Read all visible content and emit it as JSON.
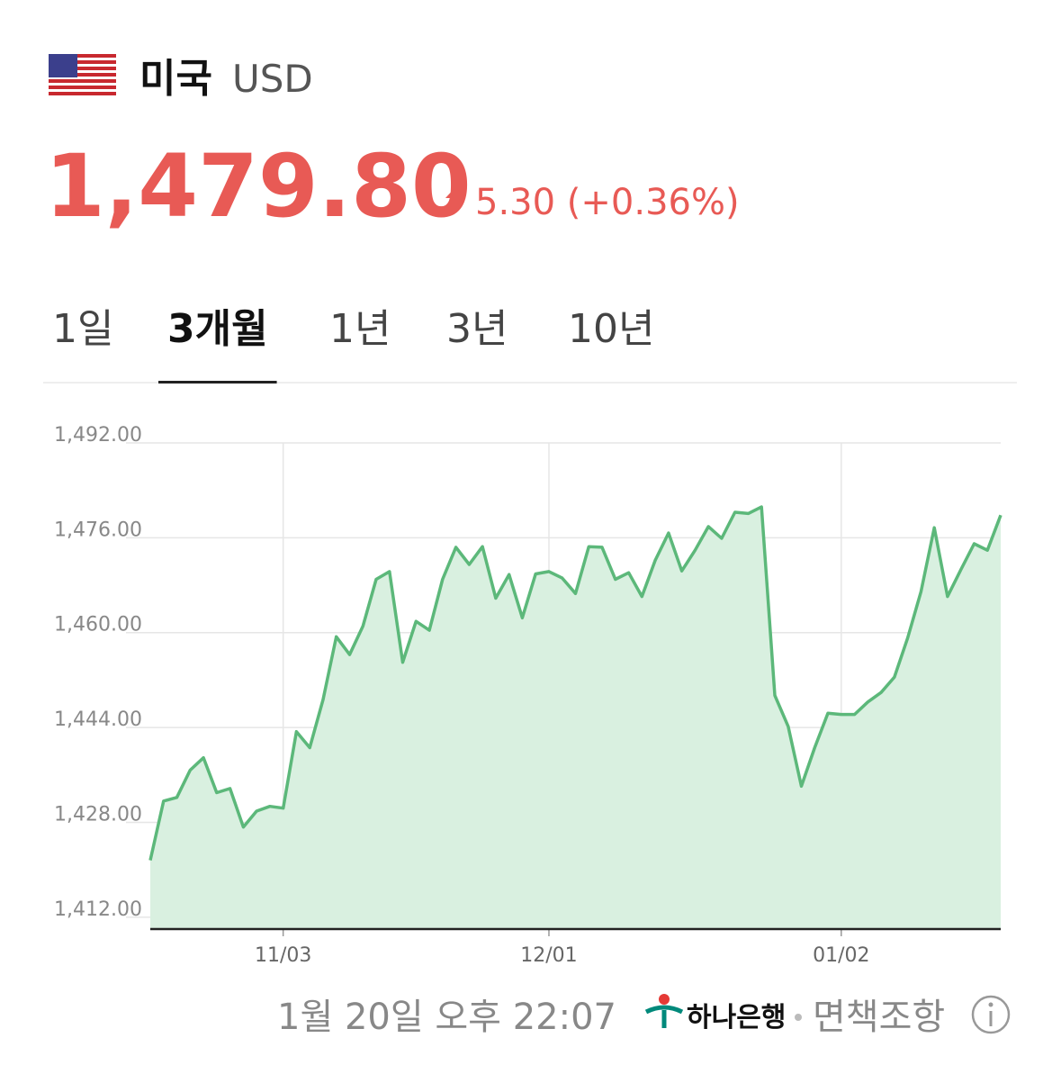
{
  "header": {
    "country": "미국",
    "currency": "USD",
    "price": "1,479.80",
    "change": "5.30 (+0.36%)"
  },
  "tabs": [
    {
      "label": "1일"
    },
    {
      "label": "3개월",
      "selected": true
    },
    {
      "label": "1년"
    },
    {
      "label": "3년"
    },
    {
      "label": "10년"
    }
  ],
  "chart_data": {
    "type": "area",
    "categories": [
      null,
      null,
      null,
      null,
      null,
      null,
      null,
      null,
      null,
      null,
      "11/03",
      null,
      null,
      null,
      null,
      null,
      null,
      null,
      null,
      null,
      null,
      null,
      null,
      null,
      null,
      null,
      null,
      null,
      null,
      null,
      "12/01",
      null,
      null,
      null,
      null,
      null,
      null,
      null,
      null,
      null,
      null,
      null,
      null,
      null,
      null,
      null,
      null,
      null,
      null,
      null,
      null,
      null,
      "01/02",
      null,
      null,
      null,
      null,
      null,
      null,
      null,
      null,
      null,
      null,
      null,
      null
    ],
    "series": [
      {
        "color": "#5cb87a",
        "fill": "#d9f0e0",
        "values": [
          1421.6,
          1431.6,
          1432.2,
          1436.8,
          1438.9,
          1433.0,
          1433.7,
          1427.2,
          1429.9,
          1430.7,
          1430.4,
          1443.3,
          1440.6,
          1448.7,
          1459.3,
          1456.3,
          1461.1,
          1469.0,
          1470.3,
          1455.0,
          1461.9,
          1460.4,
          1469.0,
          1474.4,
          1471.5,
          1474.5,
          1465.8,
          1469.8,
          1462.5,
          1469.9,
          1470.3,
          1469.2,
          1466.6,
          1474.5,
          1474.4,
          1469.0,
          1470.1,
          1466.1,
          1472.2,
          1476.8,
          1470.4,
          1473.9,
          1477.9,
          1475.9,
          1480.3,
          1480.1,
          1481.2,
          1449.4,
          1444.2,
          1434.1,
          1440.6,
          1446.4,
          1446.2,
          1446.2,
          1448.3,
          1449.9,
          1452.5,
          1459.1,
          1466.9,
          1477.7,
          1466.1,
          1470.6,
          1475.0,
          1473.9,
          1479.8
        ]
      }
    ],
    "ylim": [
      1410,
      1492
    ],
    "yticks": [
      {
        "value": 1412,
        "label": "1,412.00"
      },
      {
        "value": 1428,
        "label": "1,428.00"
      },
      {
        "value": 1444,
        "label": "1,444.00"
      },
      {
        "value": 1460,
        "label": "1,460.00"
      },
      {
        "value": 1476,
        "label": "1,476.00"
      },
      {
        "value": 1492,
        "label": "1,492.00"
      }
    ],
    "grid": true
  },
  "footer": {
    "timestamp": "1월 20일 오후 22:07",
    "bank": "하나은행",
    "disclaimer": "면책조항"
  }
}
